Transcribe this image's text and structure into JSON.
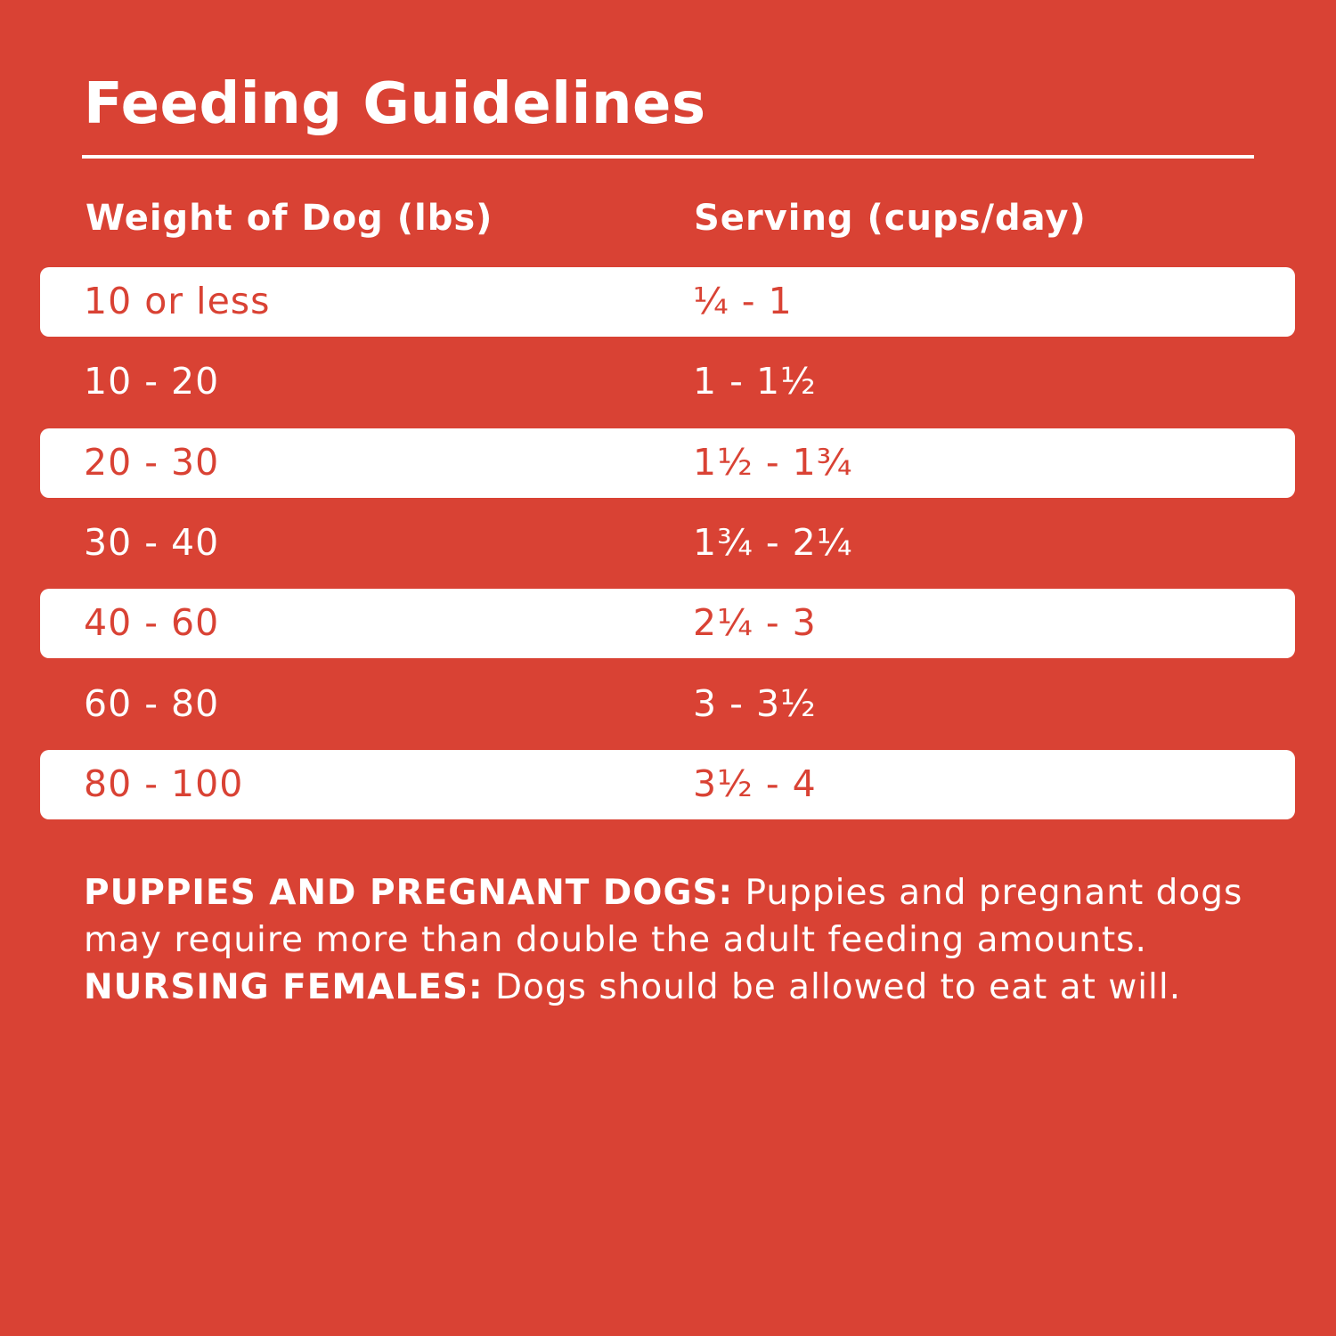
{
  "title": "Feeding Guidelines",
  "colors": {
    "background": "#D94234",
    "band": "#FFFFFF"
  },
  "table": {
    "headers": [
      "Weight of Dog (lbs)",
      "Serving (cups/day)"
    ],
    "rows": [
      [
        "10 or less",
        "¼ - 1"
      ],
      [
        "10 - 20",
        "1 - 1½"
      ],
      [
        "20 - 30",
        "1½ - 1¾"
      ],
      [
        "30 - 40",
        "1¾ - 2¼"
      ],
      [
        "40 - 60",
        "2¼ - 3"
      ],
      [
        "60 - 80",
        "3 - 3½"
      ],
      [
        "80 - 100",
        "3½ - 4"
      ]
    ]
  },
  "note": {
    "label1": "PUPPIES AND PREGNANT DOGS:",
    "text1": " Puppies and pregnant dogs may require more than double the adult feeding amounts. ",
    "label2": "NURSING FEMALES:",
    "text2": " Dogs should be allowed to eat at will."
  }
}
